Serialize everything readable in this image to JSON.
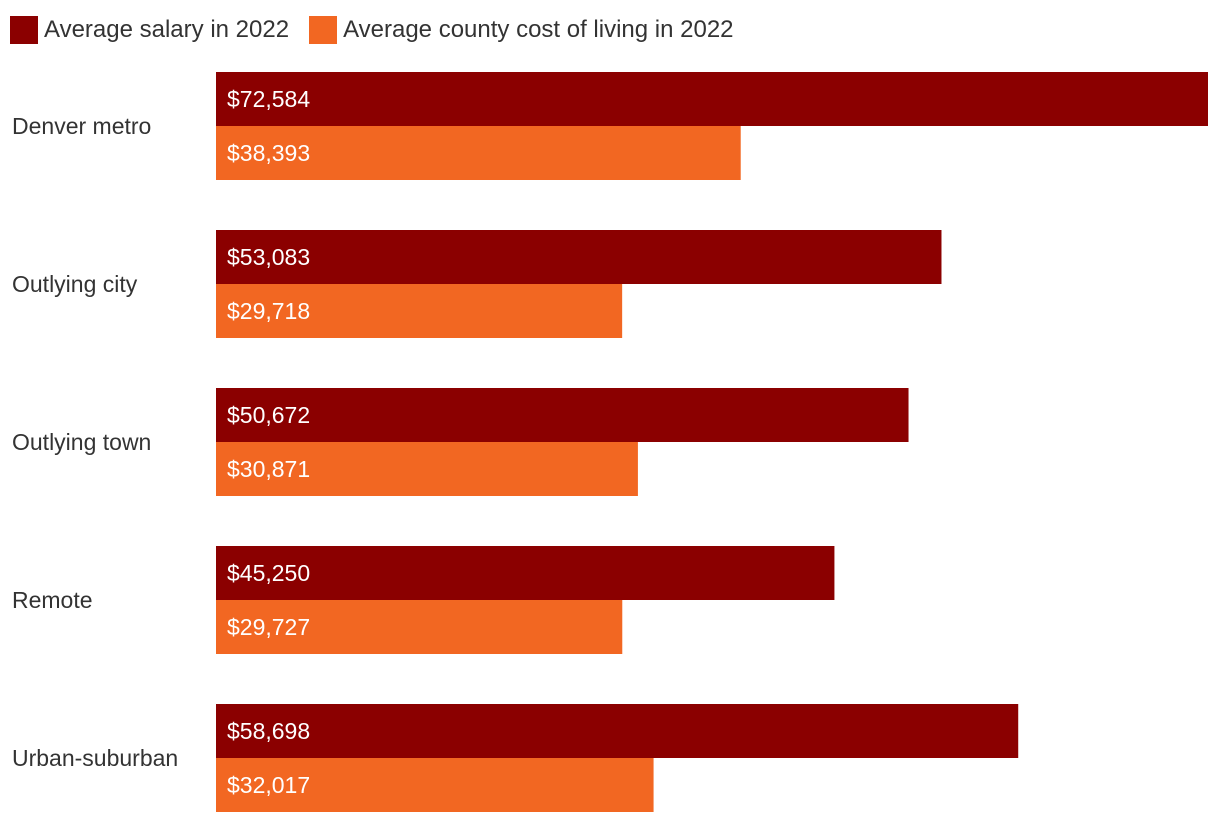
{
  "chart_data": {
    "type": "bar",
    "orientation": "horizontal",
    "title": "",
    "xlabel": "",
    "ylabel": "",
    "xlim": [
      0,
      72584
    ],
    "grid": false,
    "legend_position": "top-left",
    "categories": [
      "Denver metro",
      "Outlying city",
      "Outlying town",
      "Remote",
      "Urban-suburban"
    ],
    "series": [
      {
        "name": "Average salary in 2022",
        "color": "#8b0000",
        "values": [
          72584,
          53083,
          50672,
          45250,
          58698
        ],
        "labels": [
          "$72,584",
          "$53,083",
          "$50,672",
          "$45,250",
          "$58,698"
        ]
      },
      {
        "name": "Average county cost of living in 2022",
        "color": "#f26722",
        "values": [
          38393,
          29718,
          30871,
          29727,
          32017
        ],
        "labels": [
          "$38,393",
          "$29,718",
          "$30,871",
          "$29,727",
          "$32,017"
        ]
      }
    ]
  }
}
